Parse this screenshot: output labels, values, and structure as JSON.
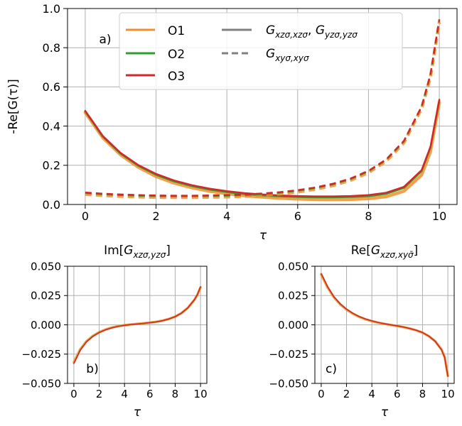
{
  "colors": {
    "O1": "#f28e2b",
    "O2": "#2ca02c",
    "O3": "#d62728",
    "grid": "#b0b0b0",
    "legend_gray": "#808080"
  },
  "chart_data": [
    {
      "id": "a",
      "type": "line",
      "panel_label": "a)",
      "title": "",
      "xlabel": "τ",
      "ylabel": "-Re[G(τ)]",
      "xlim": [
        -0.5,
        10.5
      ],
      "ylim": [
        0.0,
        1.0
      ],
      "xticks": [
        0,
        2,
        4,
        6,
        8,
        10
      ],
      "xtick_labels": [
        "0",
        "2",
        "4",
        "6",
        "8",
        "10"
      ],
      "yticks": [
        0.0,
        0.2,
        0.4,
        0.6,
        0.8,
        1.0
      ],
      "ytick_labels": [
        "0.0",
        "0.2",
        "0.4",
        "0.6",
        "0.8",
        "1.0"
      ],
      "grid": true,
      "legend": {
        "placement": "top-center",
        "entries": [
          {
            "label": "O1",
            "color": "#f28e2b",
            "style": "solid"
          },
          {
            "label": "O2",
            "color": "#2ca02c",
            "style": "solid"
          },
          {
            "label": "O3",
            "color": "#d62728",
            "style": "solid"
          },
          {
            "label": "Gxzσ,xzσ, Gyzσ,yzσ",
            "color": "#808080",
            "style": "solid"
          },
          {
            "label": "Gxyσ,xyσ",
            "color": "#808080",
            "style": "dashed"
          }
        ]
      },
      "x": [
        0,
        0.5,
        1,
        1.5,
        2,
        2.5,
        3,
        3.5,
        4,
        4.5,
        5,
        5.5,
        6,
        6.5,
        7,
        7.5,
        8,
        8.5,
        9,
        9.5,
        9.75,
        10
      ],
      "series": [
        {
          "name": "O1 Gxz,xz/Gyz,yz",
          "color": "#f28e2b",
          "style": "solid",
          "width": 4.5,
          "values": [
            0.47,
            0.34,
            0.253,
            0.19,
            0.143,
            0.11,
            0.086,
            0.068,
            0.055,
            0.045,
            0.038,
            0.032,
            0.028,
            0.026,
            0.025,
            0.026,
            0.03,
            0.04,
            0.068,
            0.15,
            0.27,
            0.52
          ]
        },
        {
          "name": "O2 Gxz,xz/Gyz,yz",
          "color": "#2ca02c",
          "style": "solid",
          "width": 2.5,
          "values": [
            0.475,
            0.345,
            0.259,
            0.197,
            0.151,
            0.118,
            0.094,
            0.076,
            0.063,
            0.053,
            0.046,
            0.041,
            0.038,
            0.036,
            0.036,
            0.038,
            0.042,
            0.054,
            0.084,
            0.17,
            0.29,
            0.53
          ]
        },
        {
          "name": "O3 Gxz,xz/Gyz,yz",
          "color": "#d62728",
          "style": "solid",
          "width": 2.5,
          "values": [
            0.478,
            0.349,
            0.263,
            0.201,
            0.156,
            0.123,
            0.099,
            0.081,
            0.068,
            0.058,
            0.051,
            0.046,
            0.043,
            0.041,
            0.041,
            0.043,
            0.048,
            0.06,
            0.09,
            0.175,
            0.295,
            0.535
          ]
        },
        {
          "name": "O1 Gxy,xy",
          "color": "#f28e2b",
          "style": "dashed",
          "width": 4.5,
          "values": [
            0.052,
            0.046,
            0.042,
            0.039,
            0.037,
            0.036,
            0.036,
            0.037,
            0.039,
            0.042,
            0.047,
            0.054,
            0.064,
            0.078,
            0.097,
            0.124,
            0.163,
            0.221,
            0.315,
            0.49,
            0.65,
            0.93
          ]
        },
        {
          "name": "O2 Gxy,xy",
          "color": "#2ca02c",
          "style": "dashed",
          "width": 2.5,
          "values": [
            0.058,
            0.052,
            0.048,
            0.045,
            0.043,
            0.042,
            0.042,
            0.043,
            0.045,
            0.048,
            0.053,
            0.06,
            0.07,
            0.084,
            0.103,
            0.13,
            0.169,
            0.227,
            0.322,
            0.497,
            0.66,
            0.94
          ]
        },
        {
          "name": "O3 Gxy,xy",
          "color": "#d62728",
          "style": "dashed",
          "width": 2.5,
          "values": [
            0.061,
            0.055,
            0.051,
            0.048,
            0.046,
            0.045,
            0.045,
            0.046,
            0.048,
            0.051,
            0.056,
            0.063,
            0.073,
            0.087,
            0.106,
            0.133,
            0.172,
            0.23,
            0.325,
            0.5,
            0.665,
            0.945
          ]
        }
      ]
    },
    {
      "id": "b",
      "type": "line",
      "panel_label": "b)",
      "title": "Im[Gxzσ,yzσ]",
      "xlabel": "τ",
      "ylabel": "",
      "xlim": [
        -0.5,
        10.5
      ],
      "ylim": [
        -0.05,
        0.05
      ],
      "xticks": [
        0,
        2,
        4,
        6,
        8,
        10
      ],
      "xtick_labels": [
        "0",
        "2",
        "4",
        "6",
        "8",
        "10"
      ],
      "yticks": [
        -0.05,
        -0.025,
        0.0,
        0.025,
        0.05
      ],
      "ytick_labels": [
        "−0.050",
        "−0.025",
        "0.000",
        "0.025",
        "0.050"
      ],
      "grid": true,
      "x": [
        0,
        0.5,
        1,
        1.5,
        2,
        2.5,
        3,
        3.5,
        4,
        4.5,
        5,
        5.5,
        6,
        6.5,
        7,
        7.5,
        8,
        8.5,
        9,
        9.5,
        9.75,
        10
      ],
      "series": [
        {
          "name": "O1",
          "color": "#f28e2b",
          "style": "solid",
          "width": 3.5,
          "values": [
            -0.032,
            -0.021,
            -0.014,
            -0.0095,
            -0.0063,
            -0.004,
            -0.0023,
            -0.0011,
            -0.0003,
            0.0003,
            0.0008,
            0.0013,
            0.0019,
            0.0026,
            0.0036,
            0.005,
            0.007,
            0.01,
            0.0145,
            0.021,
            0.0255,
            0.032
          ]
        },
        {
          "name": "O2",
          "color": "#2ca02c",
          "style": "solid",
          "width": 1.5,
          "values": [
            -0.033,
            -0.0215,
            -0.0143,
            -0.0097,
            -0.0065,
            -0.0042,
            -0.0025,
            -0.0013,
            -0.0004,
            0.0002,
            0.0007,
            0.0012,
            0.0018,
            0.0025,
            0.0035,
            0.0049,
            0.0069,
            0.0099,
            0.0144,
            0.021,
            0.0256,
            0.0322
          ]
        },
        {
          "name": "O3",
          "color": "#d62728",
          "style": "solid",
          "width": 1.5,
          "values": [
            -0.033,
            -0.0218,
            -0.0145,
            -0.0099,
            -0.0066,
            -0.0043,
            -0.0026,
            -0.0014,
            -0.0005,
            0.0002,
            0.0007,
            0.0012,
            0.0018,
            0.0025,
            0.0035,
            0.005,
            0.007,
            0.0101,
            0.0146,
            0.0213,
            0.0258,
            0.0325
          ]
        }
      ]
    },
    {
      "id": "c",
      "type": "line",
      "panel_label": "c)",
      "title": "Re[Gxzσ,xyσ̄]",
      "xlabel": "τ",
      "ylabel": "",
      "xlim": [
        -0.5,
        10.5
      ],
      "ylim": [
        -0.05,
        0.05
      ],
      "xticks": [
        0,
        2,
        4,
        6,
        8,
        10
      ],
      "xtick_labels": [
        "0",
        "2",
        "4",
        "6",
        "8",
        "10"
      ],
      "yticks": [
        -0.05,
        -0.025,
        0.0,
        0.025,
        0.05
      ],
      "ytick_labels": [
        "−0.050",
        "−0.025",
        "0.000",
        "0.025",
        "0.050"
      ],
      "grid": true,
      "x": [
        0,
        0.5,
        1,
        1.5,
        2,
        2.5,
        3,
        3.5,
        4,
        4.5,
        5,
        5.5,
        6,
        6.5,
        7,
        7.5,
        8,
        8.5,
        9,
        9.5,
        9.75,
        10
      ],
      "series": [
        {
          "name": "O1",
          "color": "#f28e2b",
          "style": "solid",
          "width": 3.5,
          "values": [
            0.043,
            0.032,
            0.0235,
            0.0175,
            0.013,
            0.0095,
            0.0068,
            0.0047,
            0.0031,
            0.0018,
            0.0008,
            -0.0001,
            -0.001,
            -0.002,
            -0.0032,
            -0.0047,
            -0.0067,
            -0.0097,
            -0.014,
            -0.021,
            -0.0275,
            -0.0435
          ]
        },
        {
          "name": "O2",
          "color": "#2ca02c",
          "style": "solid",
          "width": 1.5,
          "values": [
            0.0435,
            0.0325,
            0.0238,
            0.0178,
            0.0133,
            0.0098,
            0.007,
            0.0049,
            0.0033,
            0.002,
            0.0009,
            0.0,
            -0.0009,
            -0.0019,
            -0.0031,
            -0.0046,
            -0.0066,
            -0.0096,
            -0.014,
            -0.0212,
            -0.0278,
            -0.0438
          ]
        },
        {
          "name": "O3",
          "color": "#d62728",
          "style": "solid",
          "width": 1.5,
          "values": [
            0.0437,
            0.0327,
            0.024,
            0.018,
            0.0134,
            0.0099,
            0.0071,
            0.005,
            0.0034,
            0.002,
            0.0009,
            0.0,
            -0.0009,
            -0.0019,
            -0.0031,
            -0.0046,
            -0.0066,
            -0.0097,
            -0.0141,
            -0.0213,
            -0.028,
            -0.044
          ]
        }
      ]
    }
  ]
}
